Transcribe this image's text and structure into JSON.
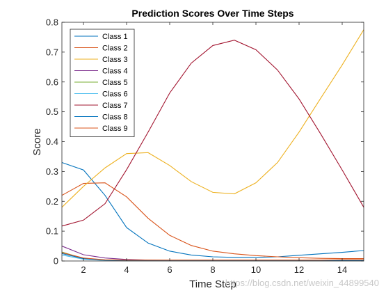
{
  "chart_data": {
    "type": "line",
    "title": "Prediction Scores Over Time Steps",
    "xlabel": "Time Step",
    "ylabel": "Score",
    "xlim": [
      1,
      15
    ],
    "ylim": [
      0,
      0.8
    ],
    "xticks": [
      2,
      4,
      6,
      8,
      10,
      12,
      14
    ],
    "yticks": [
      0,
      0.1,
      0.2,
      0.3,
      0.4,
      0.5,
      0.6,
      0.7,
      0.8
    ],
    "xtick_labels": [
      "2",
      "4",
      "6",
      "8",
      "10",
      "12",
      "14"
    ],
    "ytick_labels": [
      "0",
      "0.1",
      "0.2",
      "0.3",
      "0.4",
      "0.5",
      "0.6",
      "0.7",
      "0.8"
    ],
    "grid": false,
    "legend_position": "top-left",
    "x": [
      1,
      2,
      3,
      4,
      5,
      6,
      7,
      8,
      9,
      10,
      11,
      12,
      13,
      14,
      15
    ],
    "series": [
      {
        "name": "Class 1",
        "color": "#0072BD",
        "values": [
          0.33,
          0.305,
          0.22,
          0.112,
          0.06,
          0.033,
          0.02,
          0.014,
          0.012,
          0.012,
          0.014,
          0.019,
          0.024,
          0.029,
          0.035
        ]
      },
      {
        "name": "Class 2",
        "color": "#D95319",
        "values": [
          0.22,
          0.26,
          0.262,
          0.215,
          0.143,
          0.086,
          0.052,
          0.033,
          0.024,
          0.018,
          0.014,
          0.011,
          0.009,
          0.008,
          0.008
        ]
      },
      {
        "name": "Class 3",
        "color": "#EDB120",
        "values": [
          0.18,
          0.25,
          0.312,
          0.36,
          0.363,
          0.32,
          0.266,
          0.23,
          0.225,
          0.262,
          0.33,
          0.432,
          0.545,
          0.657,
          0.775
        ]
      },
      {
        "name": "Class 4",
        "color": "#7E2F8E",
        "values": [
          0.05,
          0.021,
          0.01,
          0.005,
          0.003,
          0.002,
          0.002,
          0.002,
          0.002,
          0.002,
          0.002,
          0.002,
          0.002,
          0.002,
          0.002
        ]
      },
      {
        "name": "Class 5",
        "color": "#77AC30",
        "values": [
          0.03,
          0.008,
          0.002,
          0.001,
          0.001,
          0.001,
          0.001,
          0.001,
          0.001,
          0.001,
          0.001,
          0.001,
          0.001,
          0.001,
          0.001
        ]
      },
      {
        "name": "Class 6",
        "color": "#4DBEEE",
        "values": [
          0.02,
          0.006,
          0.002,
          0.001,
          0.001,
          0.001,
          0.001,
          0.001,
          0.001,
          0.001,
          0.001,
          0.001,
          0.001,
          0.001,
          0.001
        ]
      },
      {
        "name": "Class 7",
        "color": "#A2142F",
        "values": [
          0.117,
          0.137,
          0.192,
          0.306,
          0.432,
          0.563,
          0.663,
          0.722,
          0.74,
          0.708,
          0.64,
          0.543,
          0.426,
          0.305,
          0.18
        ]
      },
      {
        "name": "Class 8",
        "color": "#0072BD",
        "values": [
          0.025,
          0.008,
          0.003,
          0.002,
          0.002,
          0.002,
          0.002,
          0.002,
          0.002,
          0.002,
          0.002,
          0.002,
          0.002,
          0.002,
          0.002
        ]
      },
      {
        "name": "Class 9",
        "color": "#D95319",
        "values": [
          0.028,
          0.01,
          0.004,
          0.003,
          0.003,
          0.003,
          0.003,
          0.003,
          0.003,
          0.003,
          0.003,
          0.003,
          0.003,
          0.004,
          0.004
        ]
      }
    ]
  },
  "watermark": "https://blog.csdn.net/weixin_44899540"
}
